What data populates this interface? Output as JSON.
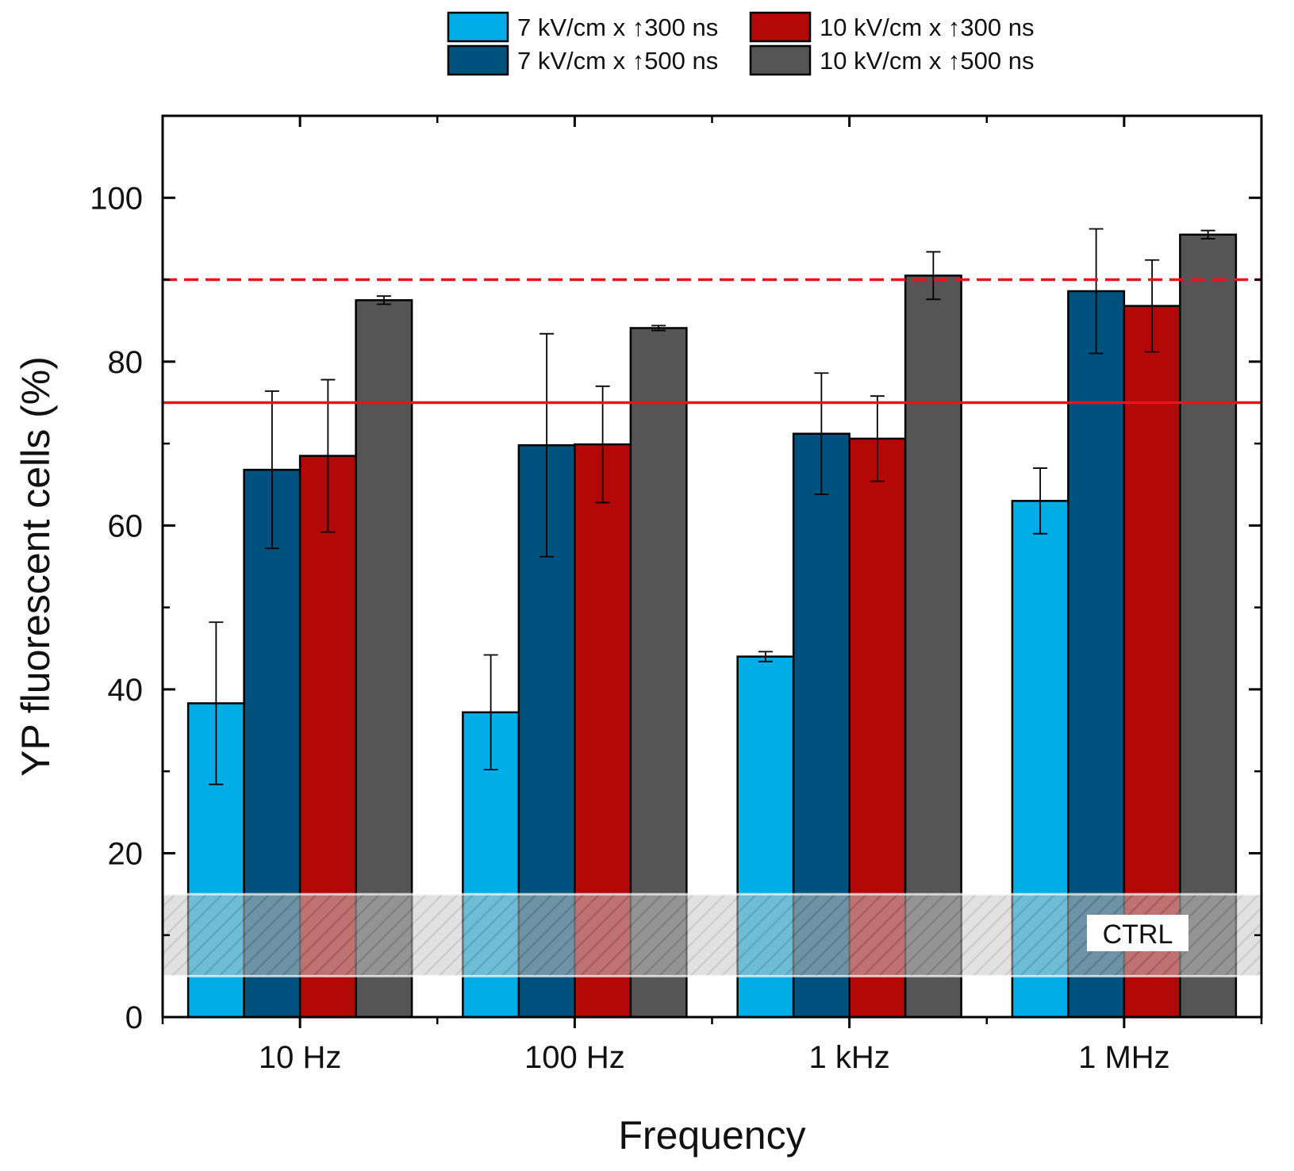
{
  "chart_data": {
    "type": "bar",
    "xlabel": "Frequency",
    "ylabel": "YP fluorescent cells (%)",
    "ylim": [
      0,
      110
    ],
    "yticks": [
      0,
      20,
      40,
      60,
      80,
      100
    ],
    "categories": [
      "10 Hz",
      "100 Hz",
      "1 kHz",
      "1 MHz"
    ],
    "series": [
      {
        "name": "7 kV/cm x ↑300 ns",
        "color": "#00ADE6",
        "values": [
          38.3,
          37.2,
          44.0,
          63.0
        ],
        "errors": [
          9.9,
          7.0,
          0.6,
          4.0
        ]
      },
      {
        "name": "7 kV/cm x ↑500 ns",
        "color": "#00527E",
        "values": [
          66.8,
          69.8,
          71.2,
          88.6
        ],
        "errors": [
          9.6,
          13.6,
          7.4,
          7.6
        ]
      },
      {
        "name": "10 kV/cm x ↑300 ns",
        "color": "#B30808",
        "values": [
          68.5,
          69.9,
          70.6,
          86.8
        ],
        "errors": [
          9.3,
          7.1,
          5.2,
          5.6
        ]
      },
      {
        "name": "10 kV/cm x ↑500 ns",
        "color": "#555555",
        "values": [
          87.5,
          84.1,
          90.5,
          95.5
        ],
        "errors": [
          0.5,
          0.3,
          2.9,
          0.5
        ]
      }
    ],
    "reference_lines": [
      {
        "value": 90,
        "style": "dashed",
        "color": "#E8141B"
      },
      {
        "value": 75,
        "style": "solid",
        "color": "#E8141B"
      }
    ],
    "control_band": {
      "label": "CTRL",
      "range": [
        5,
        15
      ],
      "color": "#B0B0B0"
    },
    "legend_position": "top-center"
  }
}
